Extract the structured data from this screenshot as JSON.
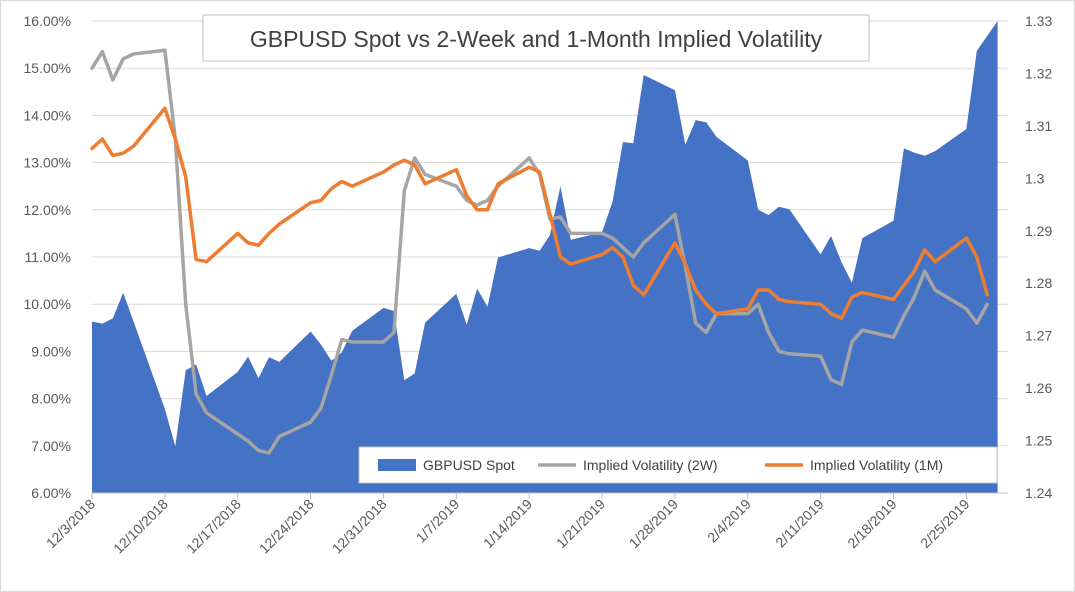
{
  "chart_data": {
    "type": "area+line",
    "title": "GBPUSD Spot vs 2-Week and 1-Month Implied Volatility",
    "x_tick_labels": [
      "12/3/2018",
      "12/10/2018",
      "12/17/2018",
      "12/24/2018",
      "12/31/2018",
      "1/7/2019",
      "1/14/2019",
      "1/21/2019",
      "1/28/2019",
      "2/4/2019",
      "2/11/2019",
      "2/18/2019",
      "2/25/2019"
    ],
    "x_range": [
      "2018-12-03",
      "2019-03-01"
    ],
    "y_left": {
      "min": 6,
      "max": 16,
      "step": 1,
      "format": "percent2",
      "tick_labels": [
        "6.00%",
        "7.00%",
        "8.00%",
        "9.00%",
        "10.00%",
        "11.00%",
        "12.00%",
        "13.00%",
        "14.00%",
        "15.00%",
        "16.00%"
      ]
    },
    "y_right": {
      "min": 1.24,
      "max": 1.33,
      "step": 0.01,
      "tick_labels": [
        "1.24",
        "1.25",
        "1.26",
        "1.27",
        "1.28",
        "1.29",
        "1.3",
        "1.31",
        "1.32",
        "1.33"
      ]
    },
    "legend": {
      "position": "bottom-right",
      "inside": true
    },
    "series": [
      {
        "name": "GBPUSD Spot",
        "type": "area",
        "axis": "right",
        "color": "#4472c4",
        "points": [
          [
            "2018-12-03",
            1.2727
          ],
          [
            "2018-12-04",
            1.2723
          ],
          [
            "2018-12-05",
            1.2733
          ],
          [
            "2018-12-06",
            1.2782
          ],
          [
            "2018-12-10",
            1.256
          ],
          [
            "2018-12-11",
            1.2489
          ],
          [
            "2018-12-12",
            1.2634
          ],
          [
            "2018-12-13",
            1.2645
          ],
          [
            "2018-12-14",
            1.2585
          ],
          [
            "2018-12-17",
            1.2631
          ],
          [
            "2018-12-18",
            1.266
          ],
          [
            "2018-12-19",
            1.2619
          ],
          [
            "2018-12-20",
            1.2659
          ],
          [
            "2018-12-21",
            1.265
          ],
          [
            "2018-12-24",
            1.2708
          ],
          [
            "2018-12-25",
            1.2683
          ],
          [
            "2018-12-26",
            1.2652
          ],
          [
            "2018-12-27",
            1.2668
          ],
          [
            "2018-12-28",
            1.2709
          ],
          [
            "2018-12-31",
            1.2753
          ],
          [
            "2019-01-01",
            1.2747
          ],
          [
            "2019-01-02",
            1.2615
          ],
          [
            "2019-01-03",
            1.2628
          ],
          [
            "2019-01-04",
            1.2725
          ],
          [
            "2019-01-07",
            1.278
          ],
          [
            "2019-01-08",
            1.2721
          ],
          [
            "2019-01-09",
            1.279
          ],
          [
            "2019-01-10",
            1.2755
          ],
          [
            "2019-01-11",
            1.2849
          ],
          [
            "2019-01-14",
            1.2867
          ],
          [
            "2019-01-15",
            1.2862
          ],
          [
            "2019-01-16",
            1.2892
          ],
          [
            "2019-01-17",
            1.2985
          ],
          [
            "2019-01-18",
            1.2883
          ],
          [
            "2019-01-21",
            1.2897
          ],
          [
            "2019-01-22",
            1.2955
          ],
          [
            "2019-01-23",
            1.3069
          ],
          [
            "2019-01-24",
            1.3067
          ],
          [
            "2019-01-25",
            1.3197
          ],
          [
            "2019-01-28",
            1.3168
          ],
          [
            "2019-01-29",
            1.3064
          ],
          [
            "2019-01-30",
            1.3111
          ],
          [
            "2019-01-31",
            1.3107
          ],
          [
            "2019-02-01",
            1.3079
          ],
          [
            "2019-02-04",
            1.3034
          ],
          [
            "2019-02-05",
            1.294
          ],
          [
            "2019-02-06",
            1.293
          ],
          [
            "2019-02-07",
            1.2946
          ],
          [
            "2019-02-08",
            1.2941
          ],
          [
            "2019-02-11",
            1.2855
          ],
          [
            "2019-02-12",
            1.289
          ],
          [
            "2019-02-13",
            1.284
          ],
          [
            "2019-02-14",
            1.2801
          ],
          [
            "2019-02-15",
            1.2886
          ],
          [
            "2019-02-18",
            1.2919
          ],
          [
            "2019-02-19",
            1.3057
          ],
          [
            "2019-02-20",
            1.3049
          ],
          [
            "2019-02-21",
            1.3043
          ],
          [
            "2019-02-22",
            1.3052
          ],
          [
            "2019-02-25",
            1.3094
          ],
          [
            "2019-02-26",
            1.3243
          ],
          [
            "2019-02-28",
            1.33
          ]
        ]
      },
      {
        "name": "Implied Volatility (2W)",
        "type": "line",
        "axis": "left",
        "color": "#a5a5a5",
        "points": [
          [
            "2018-12-03",
            15.0
          ],
          [
            "2018-12-04",
            15.35
          ],
          [
            "2018-12-05",
            14.75
          ],
          [
            "2018-12-06",
            15.2
          ],
          [
            "2018-12-07",
            15.3
          ],
          [
            "2018-12-10",
            15.38
          ],
          [
            "2018-12-11",
            13.5
          ],
          [
            "2018-12-12",
            10.0
          ],
          [
            "2018-12-13",
            8.1
          ],
          [
            "2018-12-14",
            7.7
          ],
          [
            "2018-12-17",
            7.25
          ],
          [
            "2018-12-18",
            7.1
          ],
          [
            "2018-12-19",
            6.9
          ],
          [
            "2018-12-20",
            6.85
          ],
          [
            "2018-12-21",
            7.2
          ],
          [
            "2018-12-24",
            7.5
          ],
          [
            "2018-12-25",
            7.8
          ],
          [
            "2018-12-26",
            8.5
          ],
          [
            "2018-12-27",
            9.25
          ],
          [
            "2018-12-28",
            9.2
          ],
          [
            "2018-12-31",
            9.2
          ],
          [
            "2019-01-01",
            9.4
          ],
          [
            "2019-01-02",
            12.4
          ],
          [
            "2019-01-03",
            13.1
          ],
          [
            "2019-01-04",
            12.75
          ],
          [
            "2019-01-07",
            12.5
          ],
          [
            "2019-01-08",
            12.2
          ],
          [
            "2019-01-09",
            12.1
          ],
          [
            "2019-01-10",
            12.2
          ],
          [
            "2019-01-11",
            12.5
          ],
          [
            "2019-01-14",
            13.1
          ],
          [
            "2019-01-15",
            12.75
          ],
          [
            "2019-01-16",
            11.8
          ],
          [
            "2019-01-17",
            11.85
          ],
          [
            "2019-01-18",
            11.5
          ],
          [
            "2019-01-21",
            11.5
          ],
          [
            "2019-01-22",
            11.4
          ],
          [
            "2019-01-23",
            11.2
          ],
          [
            "2019-01-24",
            11.0
          ],
          [
            "2019-01-25",
            11.3
          ],
          [
            "2019-01-28",
            11.9
          ],
          [
            "2019-01-29",
            10.8
          ],
          [
            "2019-01-30",
            9.6
          ],
          [
            "2019-01-31",
            9.4
          ],
          [
            "2019-02-01",
            9.8
          ],
          [
            "2019-02-04",
            9.8
          ],
          [
            "2019-02-05",
            10.0
          ],
          [
            "2019-02-06",
            9.4
          ],
          [
            "2019-02-07",
            9.0
          ],
          [
            "2019-02-08",
            8.95
          ],
          [
            "2019-02-11",
            8.9
          ],
          [
            "2019-02-12",
            8.4
          ],
          [
            "2019-02-13",
            8.3
          ],
          [
            "2019-02-14",
            9.2
          ],
          [
            "2019-02-15",
            9.45
          ],
          [
            "2019-02-18",
            9.3
          ],
          [
            "2019-02-19",
            9.75
          ],
          [
            "2019-02-20",
            10.15
          ],
          [
            "2019-02-21",
            10.7
          ],
          [
            "2019-02-22",
            10.3
          ],
          [
            "2019-02-25",
            9.9
          ],
          [
            "2019-02-26",
            9.6
          ],
          [
            "2019-02-27",
            10.0
          ]
        ]
      },
      {
        "name": "Implied Volatility (1M)",
        "type": "line",
        "axis": "left",
        "color": "#ed7d31",
        "points": [
          [
            "2018-12-03",
            13.3
          ],
          [
            "2018-12-04",
            13.5
          ],
          [
            "2018-12-05",
            13.15
          ],
          [
            "2018-12-06",
            13.2
          ],
          [
            "2018-12-07",
            13.35
          ],
          [
            "2018-12-10",
            14.15
          ],
          [
            "2018-12-11",
            13.5
          ],
          [
            "2018-12-12",
            12.7
          ],
          [
            "2018-12-13",
            10.95
          ],
          [
            "2018-12-14",
            10.9
          ],
          [
            "2018-12-17",
            11.5
          ],
          [
            "2018-12-18",
            11.3
          ],
          [
            "2018-12-19",
            11.25
          ],
          [
            "2018-12-20",
            11.5
          ],
          [
            "2018-12-21",
            11.7
          ],
          [
            "2018-12-24",
            12.15
          ],
          [
            "2018-12-25",
            12.2
          ],
          [
            "2018-12-26",
            12.45
          ],
          [
            "2018-12-27",
            12.6
          ],
          [
            "2018-12-28",
            12.5
          ],
          [
            "2018-12-31",
            12.8
          ],
          [
            "2019-01-01",
            12.95
          ],
          [
            "2019-01-02",
            13.05
          ],
          [
            "2019-01-03",
            12.95
          ],
          [
            "2019-01-04",
            12.55
          ],
          [
            "2019-01-07",
            12.85
          ],
          [
            "2019-01-08",
            12.3
          ],
          [
            "2019-01-09",
            12.0
          ],
          [
            "2019-01-10",
            12.0
          ],
          [
            "2019-01-11",
            12.55
          ],
          [
            "2019-01-14",
            12.9
          ],
          [
            "2019-01-15",
            12.8
          ],
          [
            "2019-01-16",
            11.9
          ],
          [
            "2019-01-17",
            11.0
          ],
          [
            "2019-01-18",
            10.85
          ],
          [
            "2019-01-21",
            11.05
          ],
          [
            "2019-01-22",
            11.2
          ],
          [
            "2019-01-23",
            11.0
          ],
          [
            "2019-01-24",
            10.4
          ],
          [
            "2019-01-25",
            10.2
          ],
          [
            "2019-01-28",
            11.3
          ],
          [
            "2019-01-29",
            10.85
          ],
          [
            "2019-01-30",
            10.3
          ],
          [
            "2019-01-31",
            10.0
          ],
          [
            "2019-02-01",
            9.8
          ],
          [
            "2019-02-04",
            9.9
          ],
          [
            "2019-02-05",
            10.3
          ],
          [
            "2019-02-06",
            10.3
          ],
          [
            "2019-02-07",
            10.1
          ],
          [
            "2019-02-08",
            10.05
          ],
          [
            "2019-02-11",
            10.0
          ],
          [
            "2019-02-12",
            9.8
          ],
          [
            "2019-02-13",
            9.7
          ],
          [
            "2019-02-14",
            10.15
          ],
          [
            "2019-02-15",
            10.25
          ],
          [
            "2019-02-18",
            10.1
          ],
          [
            "2019-02-19",
            10.4
          ],
          [
            "2019-02-20",
            10.7
          ],
          [
            "2019-02-21",
            11.15
          ],
          [
            "2019-02-22",
            10.9
          ],
          [
            "2019-02-25",
            11.4
          ],
          [
            "2019-02-26",
            11.0
          ],
          [
            "2019-02-27",
            10.2
          ]
        ]
      }
    ]
  }
}
